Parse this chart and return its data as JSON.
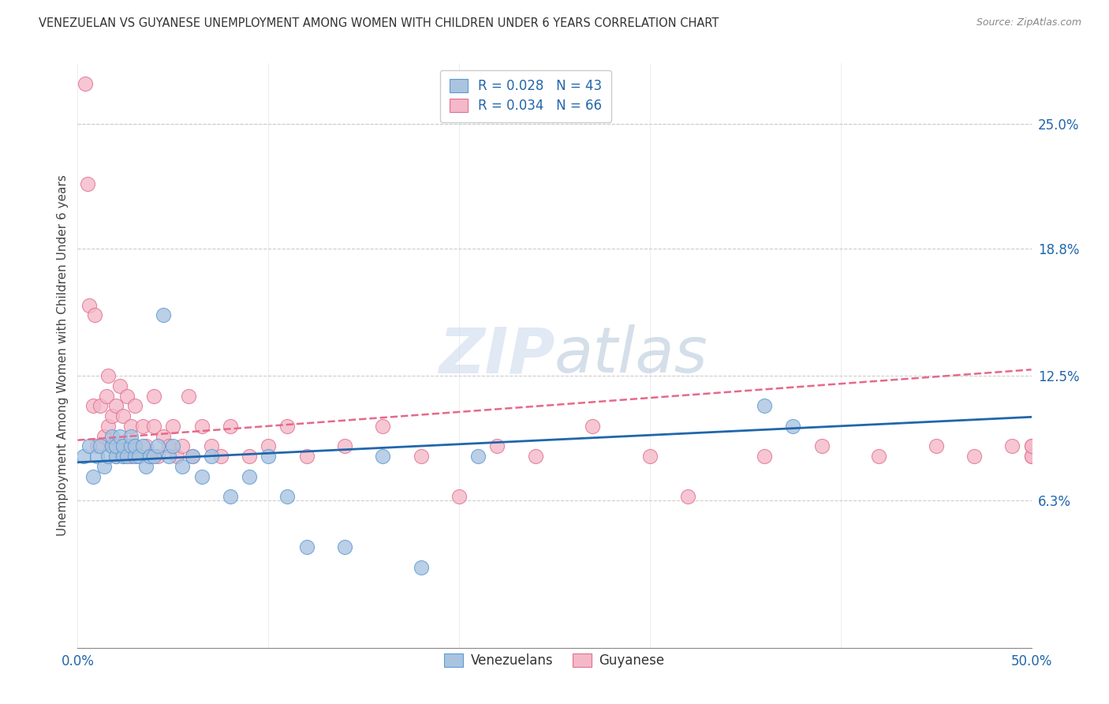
{
  "title": "VENEZUELAN VS GUYANESE UNEMPLOYMENT AMONG WOMEN WITH CHILDREN UNDER 6 YEARS CORRELATION CHART",
  "source": "Source: ZipAtlas.com",
  "ylabel": "Unemployment Among Women with Children Under 6 years",
  "xmin": 0.0,
  "xmax": 0.5,
  "ymin": -0.01,
  "ymax": 0.28,
  "ytick_labels_right": [
    "25.0%",
    "18.8%",
    "12.5%",
    "6.3%"
  ],
  "ytick_vals_right": [
    0.25,
    0.188,
    0.125,
    0.063
  ],
  "blue_scatter_color": "#aac4e0",
  "blue_edge_color": "#5b9bd5",
  "pink_scatter_color": "#f4b8c8",
  "pink_edge_color": "#e07090",
  "blue_line_color": "#2166ac",
  "pink_line_color": "#e8688a",
  "watermark_color": "#c8d8ec",
  "grid_color": "#cccccc",
  "background_color": "#ffffff",
  "ven_x": [
    0.003,
    0.006,
    0.008,
    0.01,
    0.012,
    0.014,
    0.016,
    0.018,
    0.018,
    0.02,
    0.02,
    0.022,
    0.024,
    0.024,
    0.026,
    0.028,
    0.028,
    0.03,
    0.03,
    0.032,
    0.034,
    0.036,
    0.038,
    0.04,
    0.042,
    0.045,
    0.048,
    0.05,
    0.055,
    0.06,
    0.065,
    0.07,
    0.08,
    0.09,
    0.1,
    0.11,
    0.12,
    0.14,
    0.16,
    0.18,
    0.21,
    0.36,
    0.375
  ],
  "ven_y": [
    0.085,
    0.09,
    0.075,
    0.085,
    0.09,
    0.08,
    0.085,
    0.09,
    0.095,
    0.085,
    0.09,
    0.095,
    0.085,
    0.09,
    0.085,
    0.09,
    0.095,
    0.085,
    0.09,
    0.085,
    0.09,
    0.08,
    0.085,
    0.085,
    0.09,
    0.155,
    0.085,
    0.09,
    0.08,
    0.085,
    0.075,
    0.085,
    0.065,
    0.075,
    0.085,
    0.065,
    0.04,
    0.04,
    0.085,
    0.03,
    0.085,
    0.11,
    0.1
  ],
  "guy_x": [
    0.004,
    0.005,
    0.006,
    0.008,
    0.009,
    0.01,
    0.012,
    0.014,
    0.015,
    0.016,
    0.016,
    0.018,
    0.018,
    0.02,
    0.02,
    0.022,
    0.022,
    0.024,
    0.024,
    0.026,
    0.026,
    0.028,
    0.028,
    0.03,
    0.03,
    0.032,
    0.034,
    0.036,
    0.038,
    0.04,
    0.04,
    0.042,
    0.045,
    0.048,
    0.05,
    0.052,
    0.055,
    0.058,
    0.06,
    0.065,
    0.07,
    0.075,
    0.08,
    0.09,
    0.1,
    0.11,
    0.12,
    0.14,
    0.16,
    0.18,
    0.2,
    0.22,
    0.24,
    0.27,
    0.3,
    0.32,
    0.36,
    0.39,
    0.42,
    0.45,
    0.47,
    0.49,
    0.5,
    0.5,
    0.5,
    0.5
  ],
  "guy_y": [
    0.27,
    0.22,
    0.16,
    0.11,
    0.155,
    0.09,
    0.11,
    0.095,
    0.115,
    0.1,
    0.125,
    0.09,
    0.105,
    0.085,
    0.11,
    0.09,
    0.12,
    0.085,
    0.105,
    0.09,
    0.115,
    0.085,
    0.1,
    0.09,
    0.11,
    0.085,
    0.1,
    0.09,
    0.085,
    0.1,
    0.115,
    0.085,
    0.095,
    0.09,
    0.1,
    0.085,
    0.09,
    0.115,
    0.085,
    0.1,
    0.09,
    0.085,
    0.1,
    0.085,
    0.09,
    0.1,
    0.085,
    0.09,
    0.1,
    0.085,
    0.065,
    0.09,
    0.085,
    0.1,
    0.085,
    0.065,
    0.085,
    0.09,
    0.085,
    0.09,
    0.085,
    0.09,
    0.085,
    0.09,
    0.085,
    0.09
  ]
}
